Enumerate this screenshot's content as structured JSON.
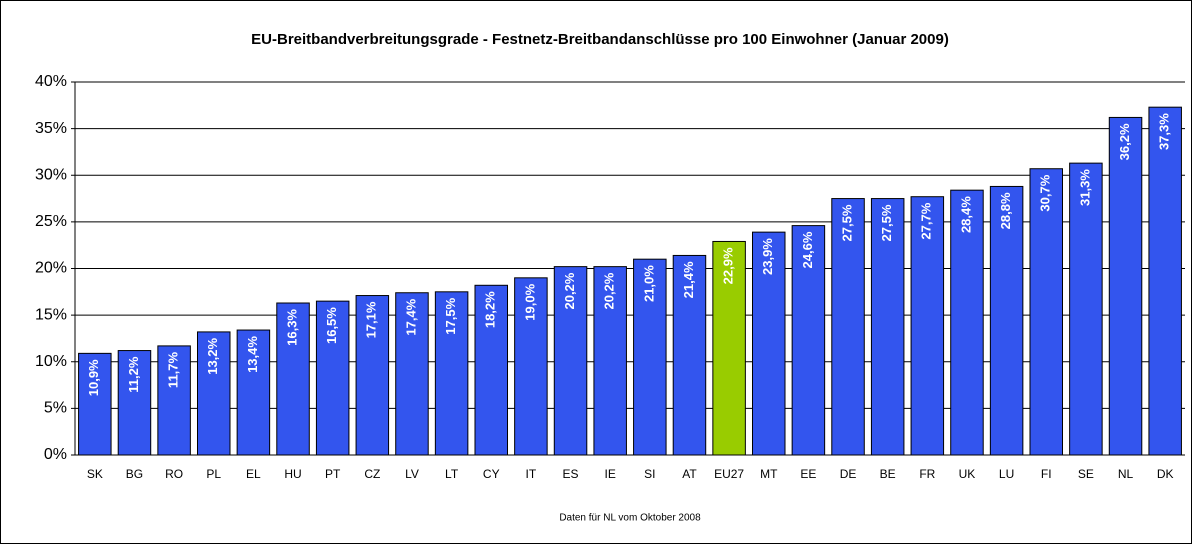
{
  "chart_data": {
    "type": "bar",
    "title": "EU-Breitbandverbreitungsgrade - Festnetz-Breitbandanschlüsse pro 100 Einwohner (Januar 2009)",
    "categories": [
      "SK",
      "BG",
      "RO",
      "PL",
      "EL",
      "HU",
      "PT",
      "CZ",
      "LV",
      "LT",
      "CY",
      "IT",
      "ES",
      "IE",
      "SI",
      "AT",
      "EU27",
      "MT",
      "EE",
      "DE",
      "BE",
      "FR",
      "UK",
      "LU",
      "FI",
      "SE",
      "NL",
      "DK"
    ],
    "values": [
      10.9,
      11.2,
      11.7,
      13.2,
      13.4,
      16.3,
      16.5,
      17.1,
      17.4,
      17.5,
      18.2,
      19.0,
      20.2,
      20.2,
      21.0,
      21.4,
      22.9,
      23.9,
      24.6,
      27.5,
      27.5,
      27.7,
      28.4,
      28.8,
      30.7,
      31.3,
      36.2,
      37.3
    ],
    "value_labels": [
      "10,9%",
      "11,2%",
      "11,7%",
      "13,2%",
      "13,4%",
      "16,3%",
      "16,5%",
      "17,1%",
      "17,4%",
      "17,5%",
      "18,2%",
      "19,0%",
      "20,2%",
      "20,2%",
      "21,0%",
      "21,4%",
      "22,9%",
      "23,9%",
      "24,6%",
      "27,5%",
      "27,5%",
      "27,7%",
      "28,4%",
      "28,8%",
      "30,7%",
      "31,3%",
      "36,2%",
      "37,3%"
    ],
    "colors": [
      "#3355ee",
      "#3355ee",
      "#3355ee",
      "#3355ee",
      "#3355ee",
      "#3355ee",
      "#3355ee",
      "#3355ee",
      "#3355ee",
      "#3355ee",
      "#3355ee",
      "#3355ee",
      "#3355ee",
      "#3355ee",
      "#3355ee",
      "#3355ee",
      "#99cc00",
      "#3355ee",
      "#3355ee",
      "#3355ee",
      "#3355ee",
      "#3355ee",
      "#3355ee",
      "#3355ee",
      "#3355ee",
      "#3355ee",
      "#3355ee",
      "#3355ee"
    ],
    "ylim": [
      0,
      40
    ],
    "yticks": [
      {
        "value": 0,
        "label": "0%"
      },
      {
        "value": 5,
        "label": "5%"
      },
      {
        "value": 10,
        "label": "10%"
      },
      {
        "value": 15,
        "label": "15%"
      },
      {
        "value": 20,
        "label": "20%"
      },
      {
        "value": 25,
        "label": "25%"
      },
      {
        "value": 30,
        "label": "30%"
      },
      {
        "value": 35,
        "label": "35%"
      },
      {
        "value": 40,
        "label": "40%"
      }
    ],
    "grid": true,
    "annotation": "Daten für NL vom Oktober 2008"
  }
}
